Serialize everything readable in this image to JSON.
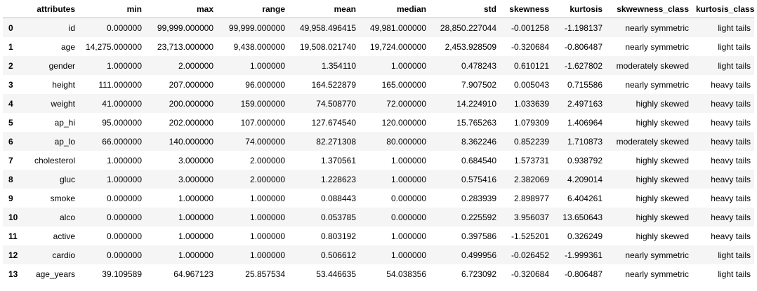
{
  "table": {
    "columns": [
      "attributes",
      "min",
      "max",
      "range",
      "mean",
      "median",
      "std",
      "skewness",
      "kurtosis",
      "skwewness_class",
      "kurtosis_class"
    ],
    "rows": [
      {
        "index": "0",
        "cells": [
          "id",
          "0.000000",
          "99,999.000000",
          "99,999.000000",
          "49,958.496415",
          "49,981.000000",
          "28,850.227044",
          "-0.001258",
          "-1.198137",
          "nearly symmetric",
          "light tails"
        ]
      },
      {
        "index": "1",
        "cells": [
          "age",
          "14,275.000000",
          "23,713.000000",
          "9,438.000000",
          "19,508.021740",
          "19,724.000000",
          "2,453.928509",
          "-0.320684",
          "-0.806487",
          "nearly symmetric",
          "light tails"
        ]
      },
      {
        "index": "2",
        "cells": [
          "gender",
          "1.000000",
          "2.000000",
          "1.000000",
          "1.354110",
          "1.000000",
          "0.478243",
          "0.610121",
          "-1.627802",
          "moderately skewed",
          "light tails"
        ]
      },
      {
        "index": "3",
        "cells": [
          "height",
          "111.000000",
          "207.000000",
          "96.000000",
          "164.522879",
          "165.000000",
          "7.907502",
          "0.005043",
          "0.715586",
          "nearly symmetric",
          "heavy tails"
        ]
      },
      {
        "index": "4",
        "cells": [
          "weight",
          "41.000000",
          "200.000000",
          "159.000000",
          "74.508770",
          "72.000000",
          "14.224910",
          "1.033639",
          "2.497163",
          "highly skewed",
          "heavy tails"
        ]
      },
      {
        "index": "5",
        "cells": [
          "ap_hi",
          "95.000000",
          "202.000000",
          "107.000000",
          "127.674540",
          "120.000000",
          "15.765263",
          "1.079309",
          "1.406964",
          "highly skewed",
          "heavy tails"
        ]
      },
      {
        "index": "6",
        "cells": [
          "ap_lo",
          "66.000000",
          "140.000000",
          "74.000000",
          "82.271308",
          "80.000000",
          "8.362246",
          "0.852239",
          "1.710873",
          "moderately skewed",
          "heavy tails"
        ]
      },
      {
        "index": "7",
        "cells": [
          "cholesterol",
          "1.000000",
          "3.000000",
          "2.000000",
          "1.370561",
          "1.000000",
          "0.684540",
          "1.573731",
          "0.938792",
          "highly skewed",
          "heavy tails"
        ]
      },
      {
        "index": "8",
        "cells": [
          "gluc",
          "1.000000",
          "3.000000",
          "2.000000",
          "1.228623",
          "1.000000",
          "0.575416",
          "2.382069",
          "4.209014",
          "highly skewed",
          "heavy tails"
        ]
      },
      {
        "index": "9",
        "cells": [
          "smoke",
          "0.000000",
          "1.000000",
          "1.000000",
          "0.088443",
          "0.000000",
          "0.283939",
          "2.898977",
          "6.404261",
          "highly skewed",
          "heavy tails"
        ]
      },
      {
        "index": "10",
        "cells": [
          "alco",
          "0.000000",
          "1.000000",
          "1.000000",
          "0.053785",
          "0.000000",
          "0.225592",
          "3.956037",
          "13.650643",
          "highly skewed",
          "heavy tails"
        ]
      },
      {
        "index": "11",
        "cells": [
          "active",
          "0.000000",
          "1.000000",
          "1.000000",
          "0.803192",
          "1.000000",
          "0.397586",
          "-1.525201",
          "0.326249",
          "highly skewed",
          "heavy tails"
        ]
      },
      {
        "index": "12",
        "cells": [
          "cardio",
          "0.000000",
          "1.000000",
          "1.000000",
          "0.506612",
          "1.000000",
          "0.499956",
          "-0.026452",
          "-1.999361",
          "nearly symmetric",
          "light tails"
        ]
      },
      {
        "index": "13",
        "cells": [
          "age_years",
          "39.109589",
          "64.967123",
          "25.857534",
          "53.446635",
          "54.038356",
          "6.723092",
          "-0.320684",
          "-0.806487",
          "nearly symmetric",
          "light tails"
        ]
      }
    ]
  }
}
